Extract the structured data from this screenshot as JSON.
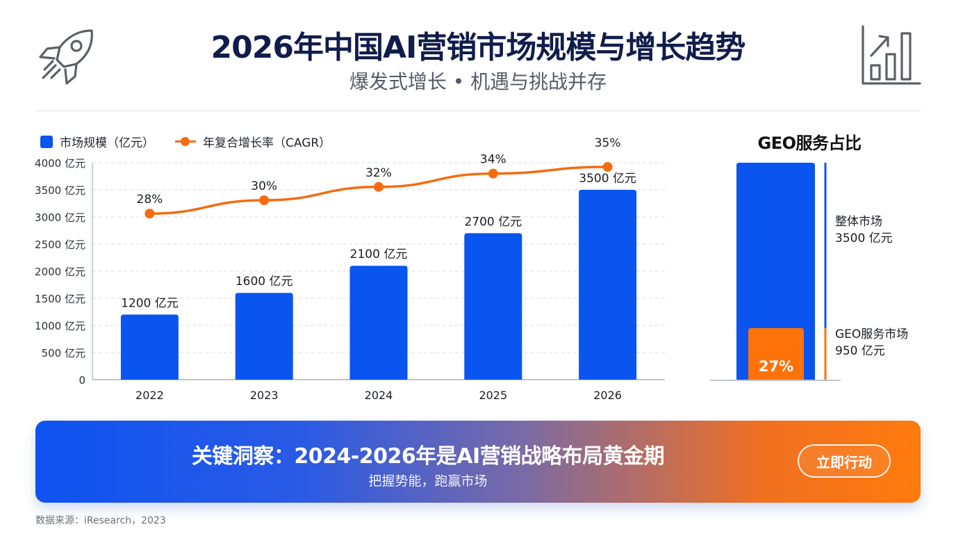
{
  "header": {
    "title": "2026年中国AI营销市场规模与增长趋势",
    "subtitle": "爆发式增长 • 机遇与挑战并存",
    "left_icon": "rocket-icon",
    "right_icon": "bar-chart-growth-icon"
  },
  "legend": {
    "bar_label": "市场规模（亿元）",
    "line_label": "年复合增长率（CAGR）"
  },
  "chart_data": [
    {
      "type": "bar",
      "categories": [
        "2022",
        "2023",
        "2024",
        "2025",
        "2026"
      ],
      "series": [
        {
          "name": "市场规模（亿元）",
          "values": [
            1200,
            1600,
            2100,
            2700,
            3500
          ],
          "data_labels": [
            "1200 亿元",
            "1600 亿元",
            "2100 亿元",
            "2700 亿元",
            "3500 亿元"
          ]
        },
        {
          "name": "年复合增长率（CAGR）",
          "type": "line",
          "values": [
            28,
            30,
            32,
            34,
            35
          ],
          "data_labels": [
            "28%",
            "30%",
            "32%",
            "34%",
            "35%"
          ]
        }
      ],
      "yticks": [
        "0",
        "500 亿元",
        "1000 亿元",
        "1500 亿元",
        "2000 亿元",
        "2500 亿元",
        "3000 亿元",
        "3500 亿元",
        "4000 亿元"
      ],
      "ylim": [
        0,
        4000
      ],
      "grid": true,
      "legend_position": "top-left"
    },
    {
      "type": "bar",
      "title": "GEO服务占比",
      "series": [
        {
          "name": "整体市场",
          "value": 3500,
          "label_lines": [
            "整体市场",
            "3500 亿元"
          ]
        },
        {
          "name": "GEO服务市场",
          "value": 950,
          "label_lines": [
            "GEO服务市场",
            "950 亿元"
          ],
          "percent_label": "27%"
        }
      ],
      "ylim": [
        0,
        4000
      ]
    }
  ],
  "banner": {
    "title": "关键洞察：2024-2026年是AI营销战略布局黄金期",
    "subtitle": "把握势能，跑赢市场",
    "button_label": "立即行动"
  },
  "footer": {
    "source": "数据来源：iResearch，2023"
  },
  "colors": {
    "bar": "#0a55f0",
    "line": "#f36c10",
    "geo_bar": "#ff7208",
    "title": "#101d4b"
  }
}
